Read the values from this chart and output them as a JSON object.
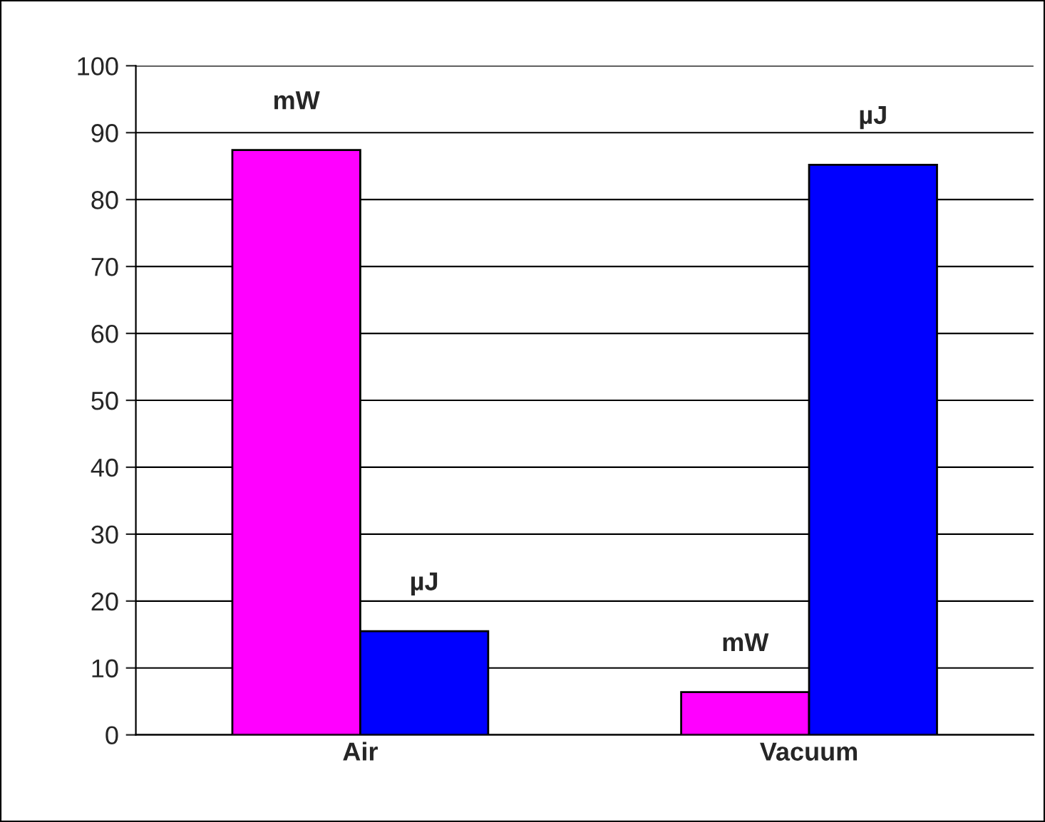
{
  "chart_data": {
    "type": "bar",
    "categories": [
      "Air",
      "Vacuum"
    ],
    "series": [
      {
        "name": "mW",
        "color": "#ff00ff",
        "values": [
          87.4,
          6.4
        ]
      },
      {
        "name": "µJ",
        "color": "#0000ff",
        "values": [
          15.5,
          85.2
        ]
      }
    ],
    "ylim": [
      0,
      100
    ],
    "yticks": [
      0,
      10,
      20,
      30,
      40,
      50,
      60,
      70,
      80,
      90,
      100
    ],
    "grid": "y",
    "legend": false
  }
}
